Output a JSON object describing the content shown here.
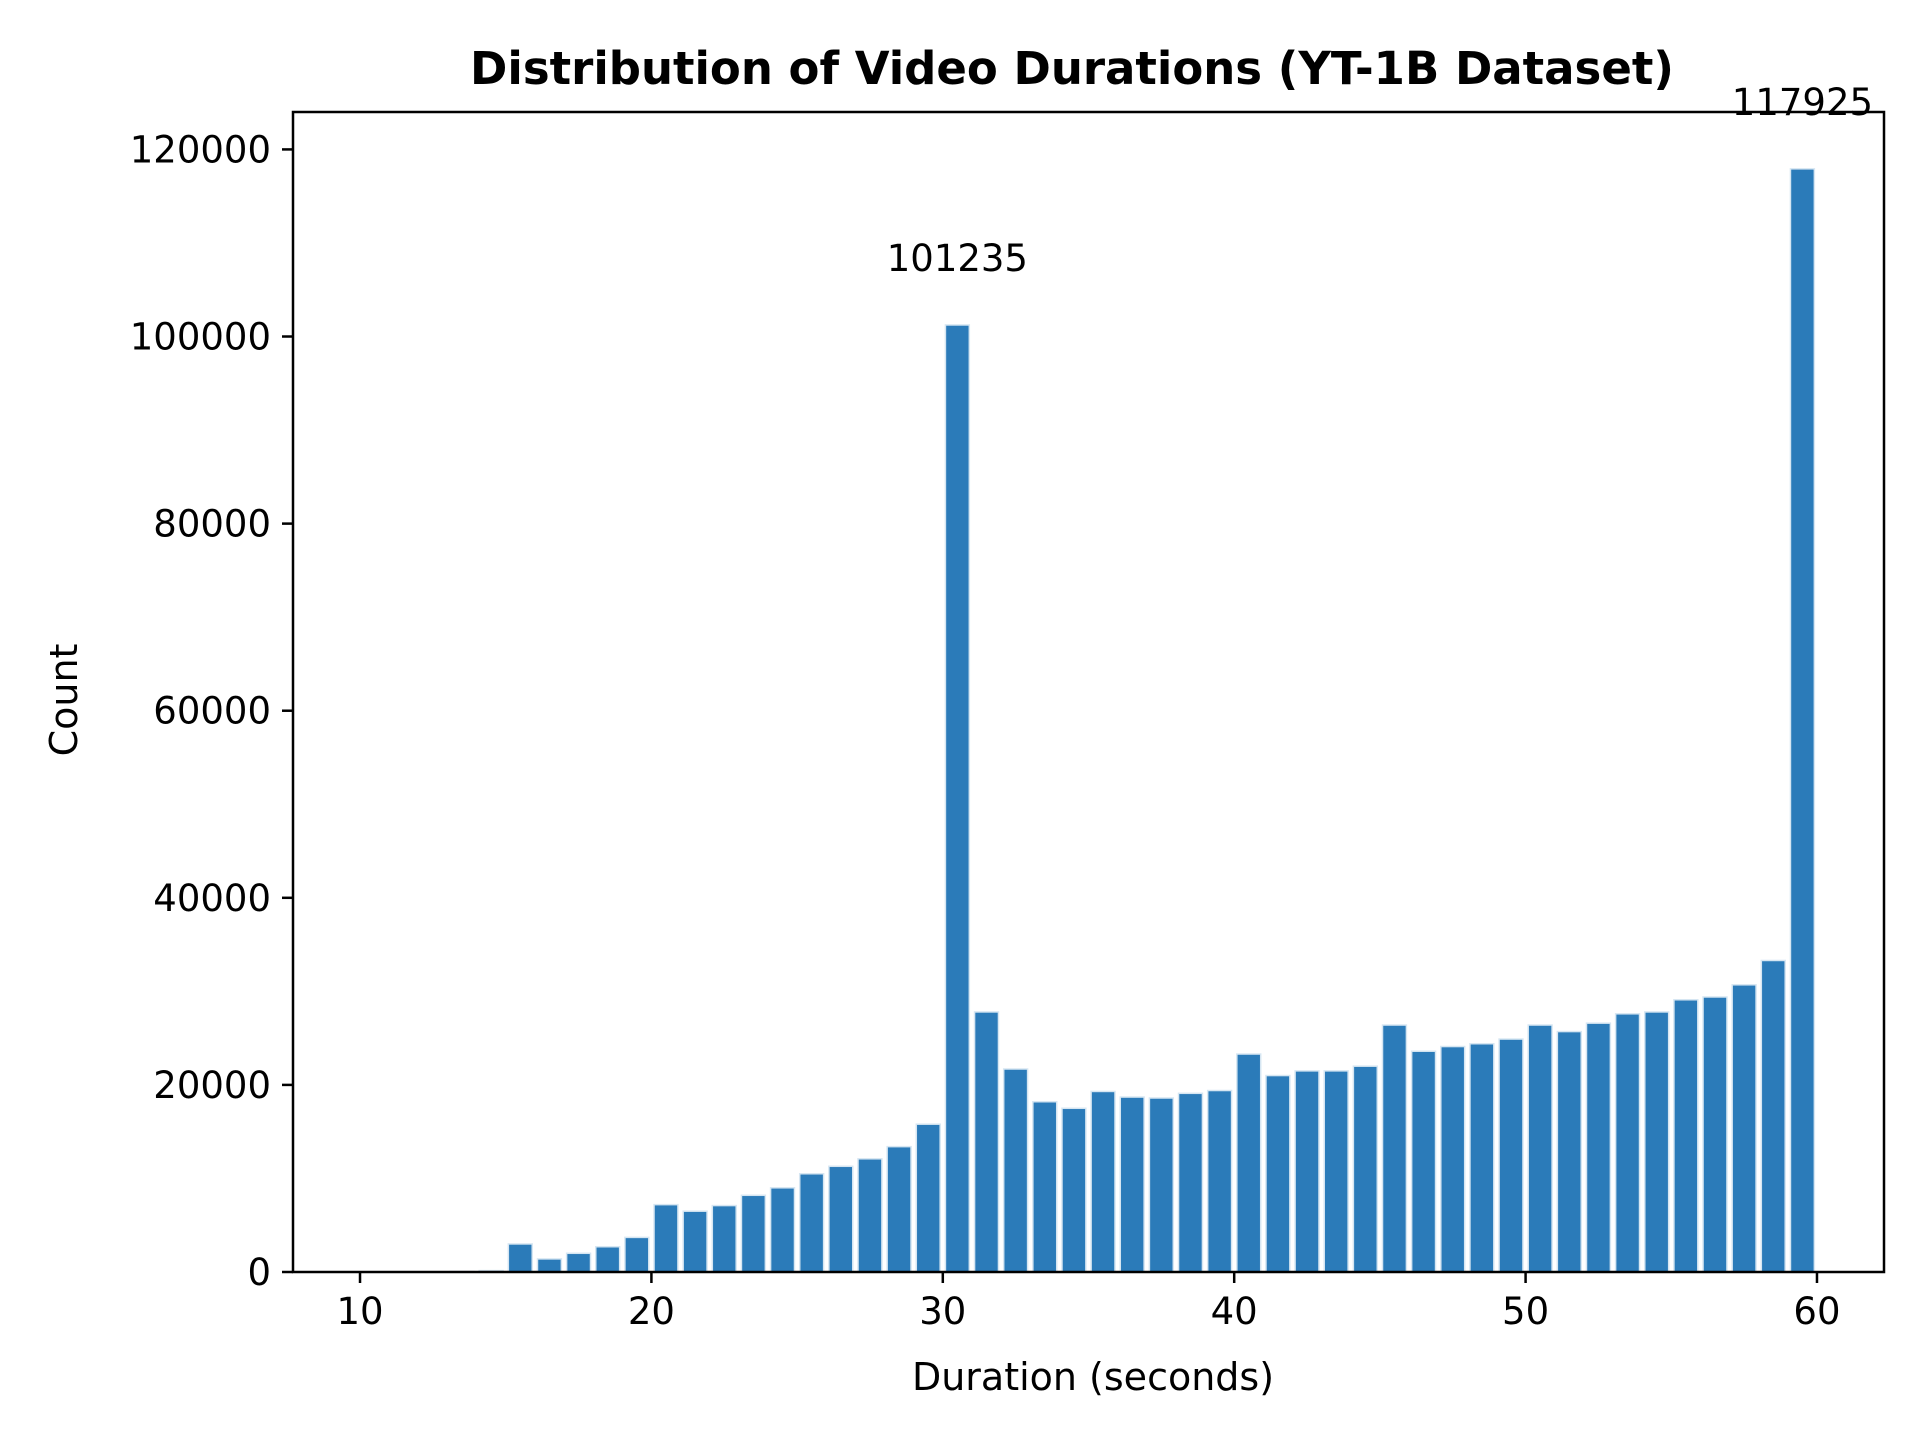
{
  "chart_data": {
    "type": "bar",
    "title": "Distribution of Video Durations (YT-1B Dataset)",
    "xlabel": "Duration (seconds)",
    "ylabel": "Count",
    "xlim": [
      7.7,
      62.3
    ],
    "ylim": [
      0,
      124000
    ],
    "xticks": [
      10,
      20,
      30,
      40,
      50,
      60
    ],
    "yticks": [
      0,
      20000,
      40000,
      60000,
      80000,
      100000,
      120000
    ],
    "grid": false,
    "legend": "none",
    "bar_color": "#2b7bb9",
    "bar_edge_color": "#d6e6f2",
    "x": [
      10,
      11,
      12,
      13,
      14,
      15,
      16,
      17,
      18,
      19,
      20,
      21,
      22,
      23,
      24,
      25,
      26,
      27,
      28,
      29,
      30,
      31,
      32,
      33,
      34,
      35,
      36,
      37,
      38,
      39,
      40,
      41,
      42,
      43,
      44,
      45,
      46,
      47,
      48,
      49,
      50,
      51,
      52,
      53,
      54,
      55,
      56,
      57,
      58,
      59,
      60
    ],
    "values": [
      0,
      0,
      0,
      50,
      150,
      3000,
      1400,
      2000,
      2700,
      3700,
      7200,
      6500,
      7100,
      8200,
      9000,
      10500,
      11300,
      12100,
      13400,
      15800,
      101235,
      27800,
      21700,
      18200,
      17500,
      19300,
      18700,
      18600,
      19100,
      19400,
      23300,
      21000,
      21500,
      21500,
      22000,
      26400,
      23600,
      24100,
      24400,
      24900,
      26400,
      25700,
      26600,
      27600,
      27800,
      29100,
      29400,
      30700,
      33300,
      117925,
      0
    ],
    "annotations": [
      {
        "x": 30,
        "y": 101235,
        "text": "101235"
      },
      {
        "x": 59,
        "y": 117925,
        "text": "117925"
      }
    ]
  }
}
